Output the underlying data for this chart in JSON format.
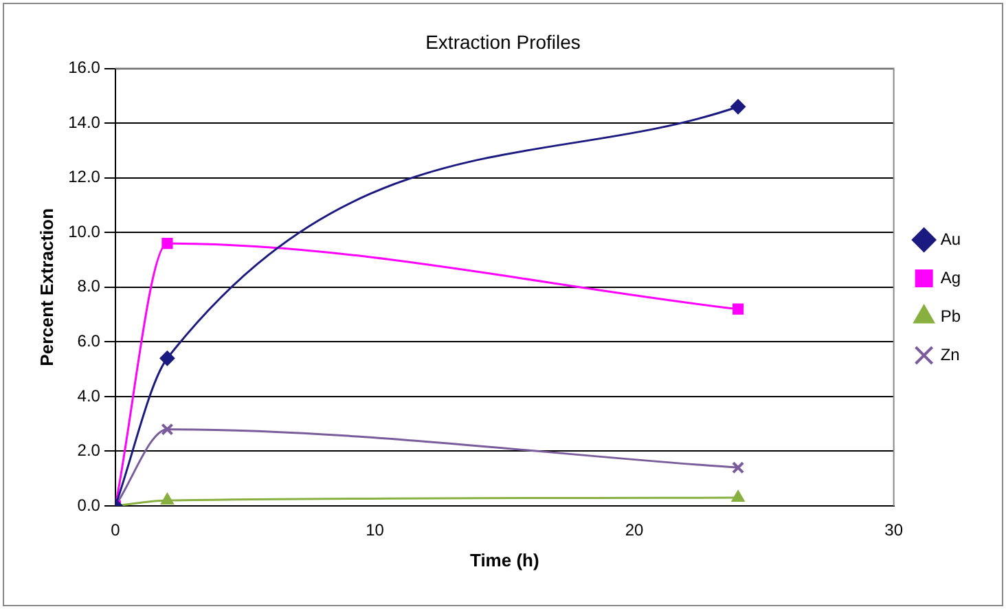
{
  "chart_data": {
    "type": "line",
    "title": "Extraction Profiles",
    "xlabel": "Time (h)",
    "ylabel": "Percent Extraction",
    "x": [
      0,
      2,
      24
    ],
    "series": [
      {
        "name": "Au",
        "color": "#1a1a80",
        "values": [
          0,
          5.4,
          14.6
        ],
        "marker": "diamond"
      },
      {
        "name": "Ag",
        "color": "#ff00ff",
        "values": [
          0,
          9.6,
          7.2
        ],
        "marker": "square"
      },
      {
        "name": "Pb",
        "color": "#88b040",
        "values": [
          0,
          0.2,
          0.3
        ],
        "marker": "triangle"
      },
      {
        "name": "Zn",
        "color": "#7a5c9c",
        "values": [
          0,
          2.8,
          1.4
        ],
        "marker": "cross"
      }
    ],
    "xlim": [
      0,
      30
    ],
    "xticks": [
      0,
      10,
      20,
      30
    ],
    "ylim": [
      0,
      16
    ],
    "yticks": [
      {
        "value": 0,
        "label": "0.0"
      },
      {
        "value": 2,
        "label": "2.0"
      },
      {
        "value": 4,
        "label": "4.0"
      },
      {
        "value": 6,
        "label": "6.0"
      },
      {
        "value": 8,
        "label": "8.0"
      },
      {
        "value": 10,
        "label": "10.0"
      },
      {
        "value": 12,
        "label": "12.0"
      },
      {
        "value": 14,
        "label": "14.0"
      },
      {
        "value": 16,
        "label": "16.0"
      }
    ],
    "grid": "y",
    "legend": "right",
    "line_style": "solid"
  }
}
